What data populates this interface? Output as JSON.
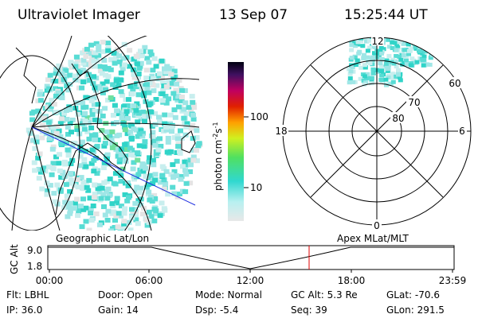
{
  "header": {
    "instrument": "Ultraviolet Imager",
    "date": "13 Sep 07",
    "time": "15:25:44 UT"
  },
  "colorbar": {
    "label": [
      "photon cm",
      "-2",
      "s",
      "-1"
    ],
    "ticks": [
      "100",
      "10"
    ]
  },
  "polar": {
    "mlt_labels": [
      "12",
      "18",
      "6",
      "0"
    ],
    "lat_labels": [
      "60",
      "70",
      "80"
    ]
  },
  "panels": {
    "left": "Geographic Lat/Lon",
    "right": "Apex MLat/MLT"
  },
  "timeline": {
    "ylabel": "GC Alt",
    "yticks": [
      "9.0",
      "1.8"
    ],
    "xticks": [
      "00:00",
      "06:00",
      "12:00",
      "18:00",
      "23:59"
    ]
  },
  "info": [
    [
      "Flt: LBHL",
      "Door: Open",
      "Mode: Normal",
      "GC Alt: 5.3 Re",
      "GLat: -70.6"
    ],
    [
      "IP: 36.0",
      "Gain: 14",
      "Dsp:   -5.4",
      "Seq: 39",
      "GLon: 291.5"
    ]
  ]
}
